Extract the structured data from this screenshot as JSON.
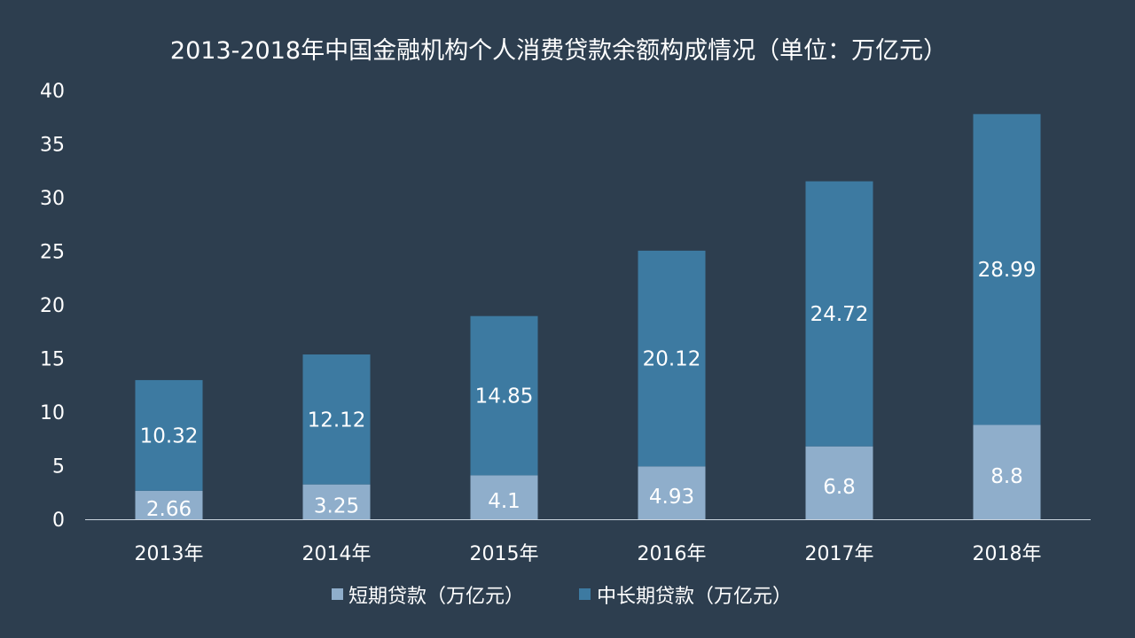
{
  "chart_data": {
    "type": "bar",
    "stacked": true,
    "title": "2013-2018年中国金融机构个人消费贷款余额构成情况（单位：万亿元）",
    "categories": [
      "2013年",
      "2014年",
      "2015年",
      "2016年",
      "2017年",
      "2018年"
    ],
    "series": [
      {
        "name": "短期贷款（万亿元）",
        "values": [
          2.66,
          3.25,
          4.1,
          4.93,
          6.8,
          8.8
        ],
        "color": "#8faecb"
      },
      {
        "name": "中长期贷款（万亿元）",
        "values": [
          10.32,
          12.12,
          14.85,
          20.12,
          24.72,
          28.99
        ],
        "color": "#3d7aa1"
      }
    ],
    "yticks": [
      0,
      5,
      10,
      15,
      20,
      25,
      30,
      35,
      40
    ],
    "ylim": [
      0,
      40
    ],
    "xlabel": "",
    "ylabel": "",
    "grid": false,
    "legend_position": "bottom",
    "axis_color": "#c8d3dd",
    "background": "#2d3e4f"
  }
}
